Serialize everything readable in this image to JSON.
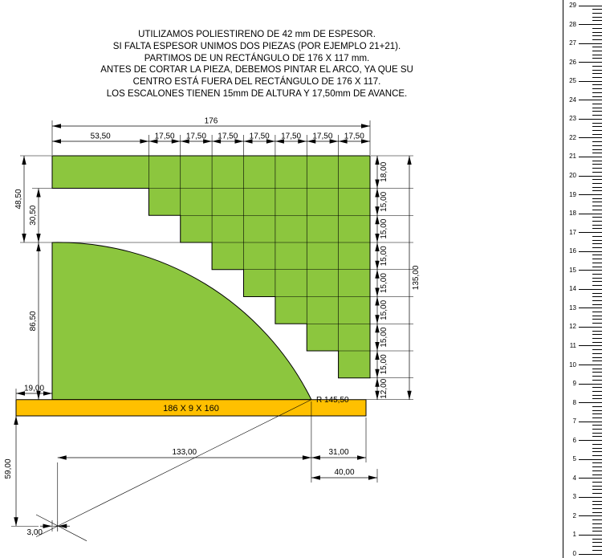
{
  "notes": {
    "lines": [
      "UTILIZAMOS POLIESTIRENO DE 42 mm DE ESPESOR.",
      "SI FALTA ESPESOR UNIMOS DOS PIEZAS (POR EJEMPLO 21+21).",
      "PARTIMOS DE UN RECTÁNGULO DE 176 X 117 mm.",
      "ANTES DE CORTAR LA PIEZA, DEBEMOS PINTAR EL ARCO, YA QUE SU",
      "CENTRO ESTÁ FUERA DEL RECTÁNGULO DE 176 X 117.",
      "LOS ESCALONES TIENEN 15mm DE ALTURA Y 17,50mm DE AVANCE."
    ]
  },
  "piece": {
    "bar_label": "186 X 9 X 160",
    "radius_label": "R 145,50"
  },
  "dims": {
    "top_total": "176",
    "top_segments": [
      "53,50",
      "17,50",
      "17,50",
      "17,50",
      "17,50",
      "17,50",
      "17,50",
      "17,50"
    ],
    "right_segments": [
      "18,00",
      "15,00",
      "15,00",
      "15,00",
      "15,00",
      "15,00",
      "15,00",
      "15,00",
      "12,00"
    ],
    "right_total": "135,00",
    "left_top": "48,50",
    "left_mid": "30,50",
    "left_low": "86,50",
    "left_overhang": "19,00",
    "left_below": "59,00",
    "center_offset": "3,00",
    "bottom_inner": "133,00",
    "bottom_outer": "31,00",
    "bottom_low": "40,00"
  },
  "colors": {
    "piece_green": "#8CC63E",
    "bar_orange": "#FFC000"
  },
  "ruler": {
    "numbers": [
      "0",
      "1",
      "2",
      "3",
      "4",
      "5",
      "6",
      "7",
      "8",
      "9",
      "10",
      "11",
      "12",
      "13",
      "14",
      "15",
      "16",
      "17",
      "18",
      "19",
      "20",
      "21",
      "22",
      "23",
      "24",
      "25",
      "26",
      "27",
      "28",
      "29"
    ]
  }
}
